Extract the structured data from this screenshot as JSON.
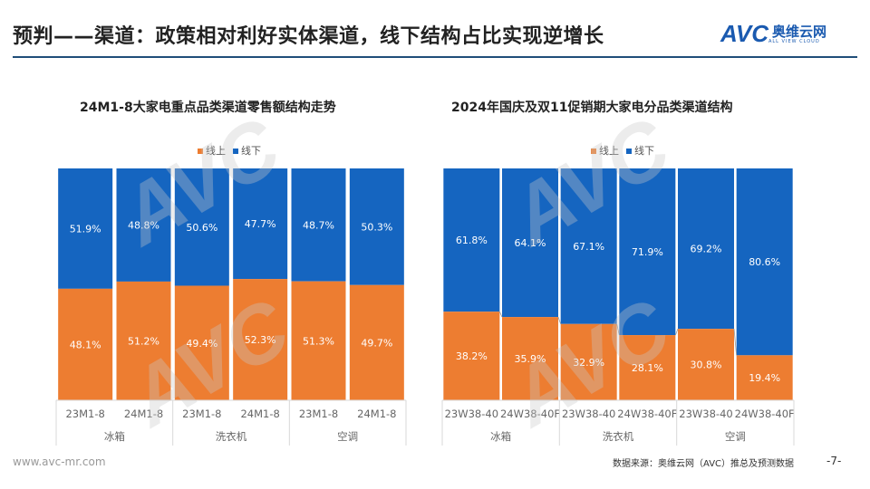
{
  "header": {
    "title": "预判——渠道：政策相对利好实体渠道，线下结构占比实现逆增长",
    "logo_text": "AVC",
    "logo_cn": "奥维云网",
    "logo_en": "ALL VIEW CLOUD"
  },
  "footer": {
    "website": "www.avc-mr.com",
    "source": "数据来源：奥维云网（AVC）推总及预测数据",
    "page": "-7-"
  },
  "colors": {
    "online": "#ED7D31",
    "offline": "#1565C0"
  },
  "chart_data": [
    {
      "type": "bar",
      "stacked": true,
      "title": "24M1-8大家电重点品类渠道零售额结构走势",
      "legend": [
        "线上",
        "线下"
      ],
      "legend_position": "top",
      "categories": [
        "23M1-8",
        "24M1-8",
        "23M1-8",
        "24M1-8",
        "23M1-8",
        "24M1-8"
      ],
      "groups": [
        "冰箱",
        "洗衣机",
        "空调"
      ],
      "series": [
        {
          "name": "线上",
          "values": [
            48.1,
            51.2,
            49.4,
            52.3,
            51.3,
            49.7
          ]
        },
        {
          "name": "线下",
          "values": [
            51.9,
            48.8,
            50.6,
            47.7,
            48.7,
            50.3
          ]
        }
      ],
      "ylim": [
        0,
        100
      ]
    },
    {
      "type": "bar",
      "stacked": true,
      "title": "2024年国庆及双11促销期大家电分品类渠道结构",
      "legend": [
        "线上",
        "线下"
      ],
      "legend_position": "top",
      "categories": [
        "23W38-40",
        "24W38-40F",
        "23W38-40",
        "24W38-40F",
        "23W38-40",
        "24W38-40F"
      ],
      "groups": [
        "冰箱",
        "洗衣机",
        "空调"
      ],
      "series": [
        {
          "name": "线上",
          "values": [
            38.2,
            35.9,
            32.9,
            28.1,
            30.8,
            19.4
          ]
        },
        {
          "name": "线下",
          "values": [
            61.8,
            64.1,
            67.1,
            71.9,
            69.2,
            80.6
          ]
        }
      ],
      "ylim": [
        0,
        100
      ],
      "connector_lines": true
    }
  ]
}
